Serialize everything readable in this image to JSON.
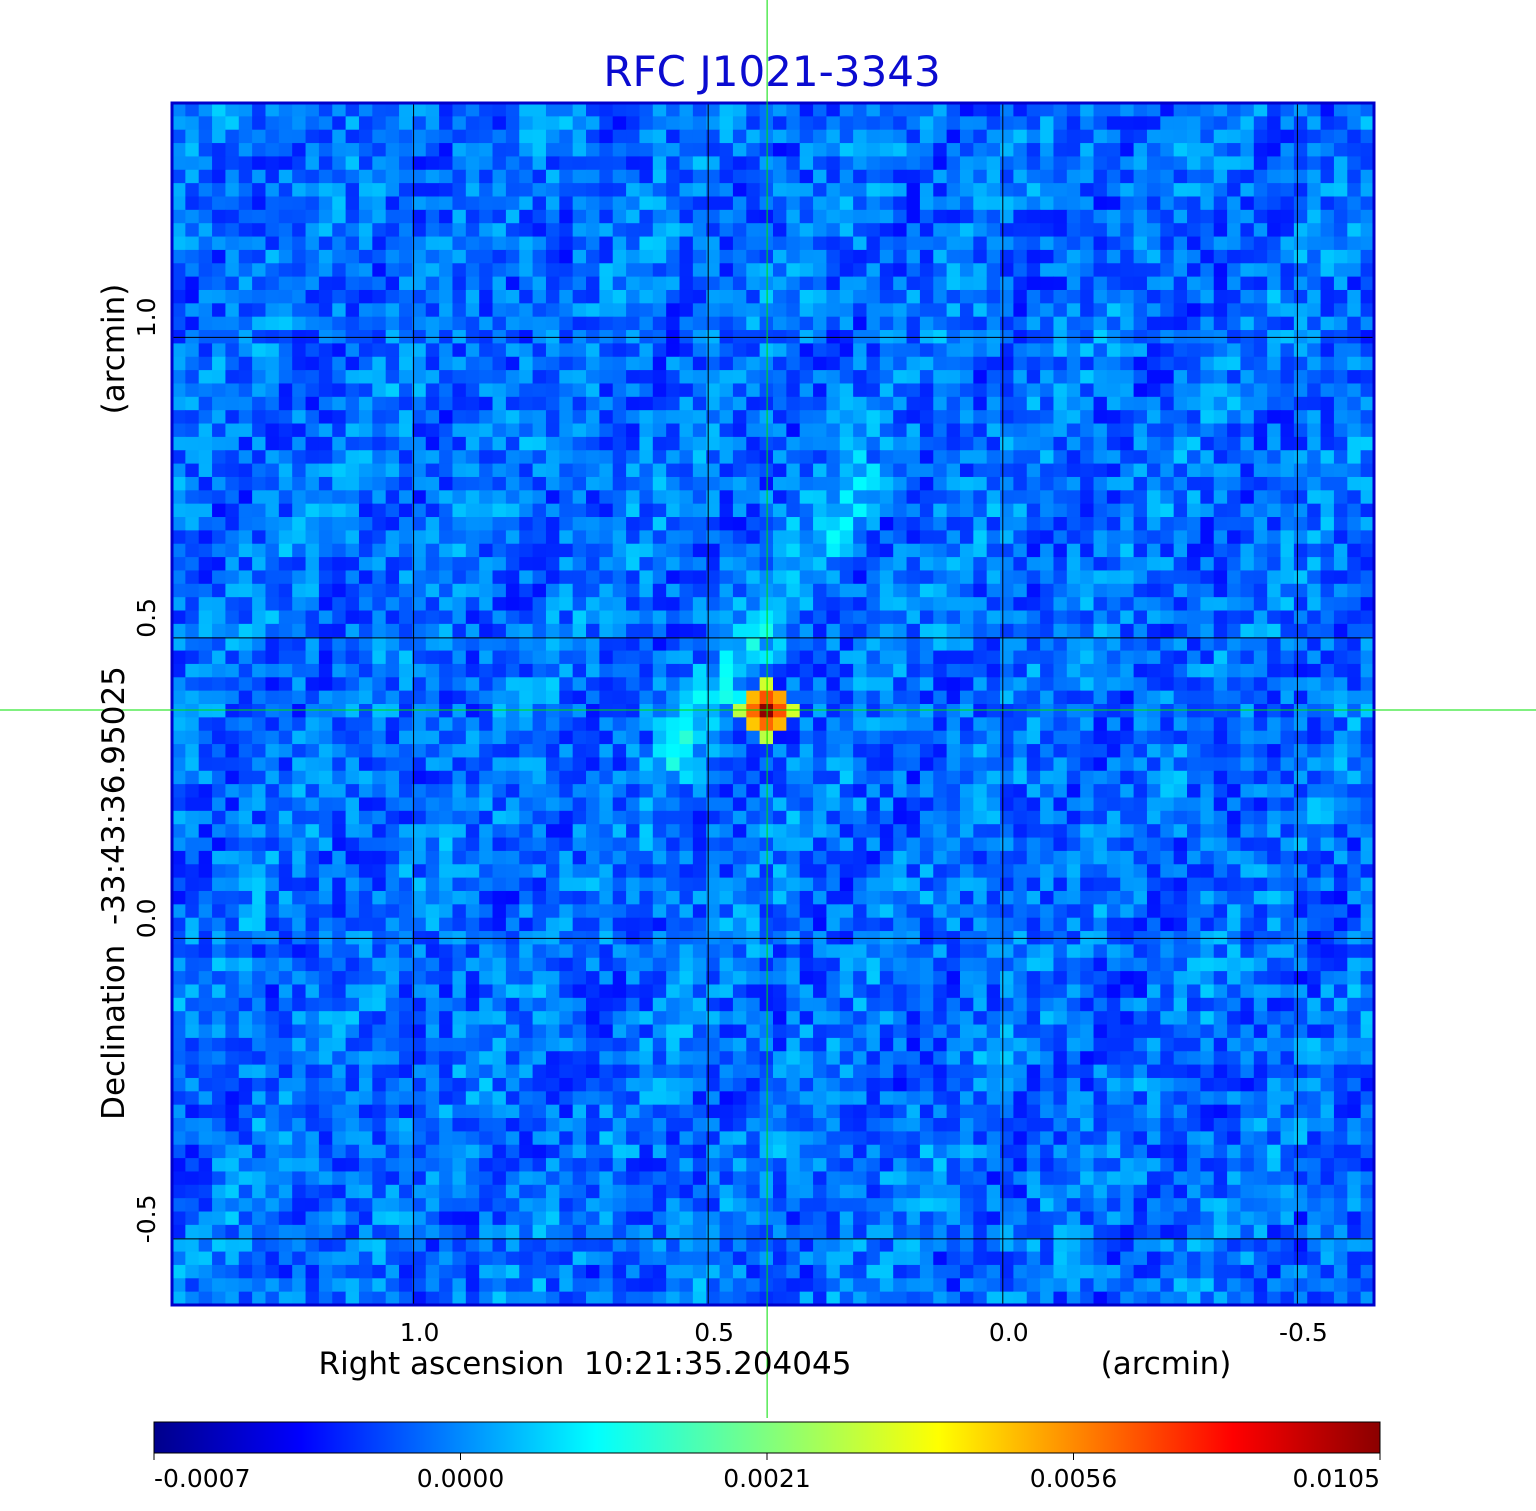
{
  "chart_data": {
    "type": "heatmap",
    "title": "RFC J1021-3343",
    "xlabel": "Right ascension  10:21:35.204045",
    "xunit": "(arcmin)",
    "ylabel": "Declination  -33:43:36.95025",
    "yunit": "(arcmin)",
    "x_ticks": [
      "1.0",
      "0.5",
      "0.0",
      "-0.5"
    ],
    "x_tick_values": [
      1.0,
      0.5,
      0.0,
      -0.5
    ],
    "y_ticks": [
      "1.0",
      "0.5",
      "0.0",
      "-0.5"
    ],
    "y_tick_values": [
      1.0,
      0.5,
      0.0,
      -0.5
    ],
    "xlim": [
      1.41,
      -0.63
    ],
    "ylim": [
      -0.61,
      1.39
    ],
    "x_inverted": true,
    "grid": true,
    "crosshair": {
      "x": 0.4,
      "y": 0.38,
      "color": "#00e000"
    },
    "source": {
      "x": 0.4,
      "y": 0.38,
      "peak": 0.0105
    },
    "jet_feature": {
      "from": [
        0.55,
        0.3
      ],
      "to": [
        0.25,
        0.75
      ],
      "level": 0.0012
    },
    "colorbar": {
      "colormap": "jet",
      "tick_labels": [
        "-0.0007",
        "0.0000",
        "0.0021",
        "0.0056",
        "0.0105"
      ],
      "tick_values": [
        -0.0007,
        0.0,
        0.0021,
        0.0056,
        0.0105
      ]
    },
    "colors": {
      "title": "#0b0bd0",
      "frame": "#0000cc",
      "grid": "#000000",
      "crosshair": "#00e000"
    }
  }
}
